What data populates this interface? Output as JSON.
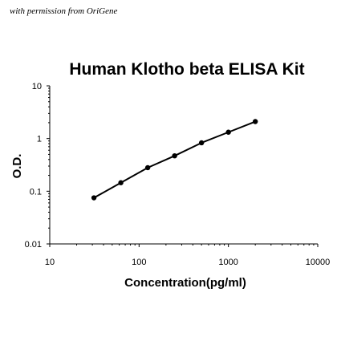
{
  "header": {
    "note": "with permission from OriGene"
  },
  "chart_data": {
    "type": "line",
    "title": "Human Klotho beta ELISA Kit",
    "xlabel": "Concentration(pg/ml)",
    "ylabel": "O.D.",
    "xscale": "log",
    "yscale": "log",
    "xlim": [
      10,
      10000
    ],
    "ylim": [
      0.01,
      10
    ],
    "xticks": [
      10,
      100,
      1000,
      10000
    ],
    "xtick_labels": [
      "10",
      "100",
      "1000",
      "10000"
    ],
    "yticks": [
      0.01,
      0.1,
      1,
      10
    ],
    "ytick_labels": [
      "0.01",
      "0.1",
      "1",
      "10"
    ],
    "grid": false,
    "legend": false,
    "color": "#000000",
    "series": [
      {
        "x": [
          31.25,
          62.5,
          125,
          250,
          500,
          1000,
          2000
        ],
        "y": [
          0.075,
          0.145,
          0.28,
          0.47,
          0.83,
          1.32,
          2.1
        ]
      }
    ]
  }
}
